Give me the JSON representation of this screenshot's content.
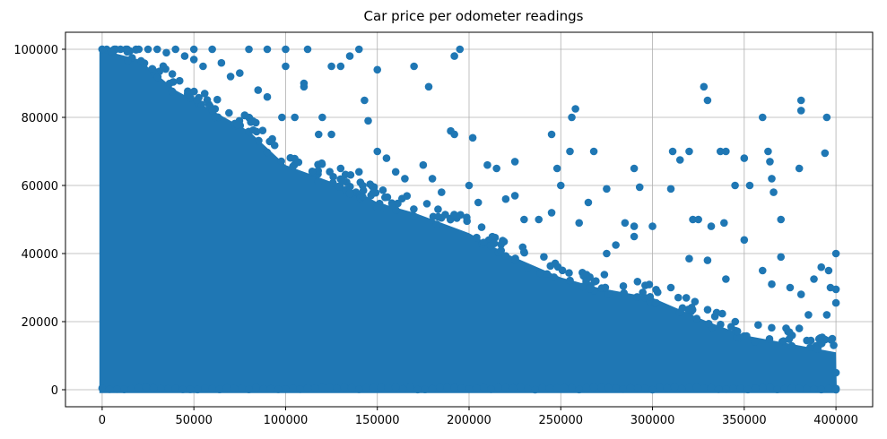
{
  "chart_data": {
    "type": "scatter",
    "title": "Car price per odometer readings",
    "xlabel": "",
    "ylabel": "",
    "xlim": [
      -20000,
      420000
    ],
    "ylim": [
      -5000,
      105000
    ],
    "xticks": [
      0,
      50000,
      100000,
      150000,
      200000,
      250000,
      300000,
      350000,
      400000
    ],
    "xtick_labels": [
      "0",
      "50000",
      "100000",
      "150000",
      "200000",
      "250000",
      "300000",
      "350000",
      "400000"
    ],
    "yticks": [
      0,
      20000,
      40000,
      60000,
      80000,
      100000
    ],
    "ytick_labels": [
      "0",
      "20000",
      "40000",
      "60000",
      "80000",
      "100000"
    ],
    "grid": true,
    "color": "#1f77b4",
    "series": [
      {
        "dense_band_upper_envelope": [
          [
            0,
            100000
          ],
          [
            20000,
            97000
          ],
          [
            40000,
            88000
          ],
          [
            60000,
            82000
          ],
          [
            80000,
            76000
          ],
          [
            100000,
            66000
          ],
          [
            120000,
            62000
          ],
          [
            140000,
            58000
          ],
          [
            150000,
            55000
          ],
          [
            170000,
            52000
          ],
          [
            200000,
            46000
          ],
          [
            220000,
            40000
          ],
          [
            250000,
            33000
          ],
          [
            270000,
            30000
          ],
          [
            300000,
            27000
          ],
          [
            330000,
            20000
          ],
          [
            350000,
            16000
          ],
          [
            380000,
            13000
          ],
          [
            400000,
            11000
          ]
        ],
        "outliers": [
          [
            0,
            100000
          ],
          [
            5000,
            99500
          ],
          [
            10000,
            100000
          ],
          [
            20000,
            100000
          ],
          [
            30000,
            100000
          ],
          [
            40000,
            100000
          ],
          [
            50000,
            100000
          ],
          [
            60000,
            100000
          ],
          [
            80000,
            100000
          ],
          [
            90000,
            100000
          ],
          [
            100000,
            100000
          ],
          [
            112000,
            100000
          ],
          [
            135000,
            98000
          ],
          [
            140000,
            100000
          ],
          [
            192000,
            98000
          ],
          [
            195000,
            100000
          ],
          [
            130000,
            95000
          ],
          [
            125000,
            95000
          ],
          [
            170000,
            95000
          ],
          [
            150000,
            94000
          ],
          [
            178000,
            89000
          ],
          [
            110000,
            90000
          ],
          [
            100000,
            95000
          ],
          [
            143000,
            85000
          ],
          [
            145000,
            79000
          ],
          [
            190000,
            76000
          ],
          [
            192000,
            75000
          ],
          [
            202000,
            74000
          ],
          [
            210000,
            66000
          ],
          [
            215000,
            65000
          ],
          [
            225000,
            67000
          ],
          [
            245000,
            75000
          ],
          [
            248000,
            65000
          ],
          [
            255000,
            70000
          ],
          [
            256000,
            80000
          ],
          [
            258000,
            82500
          ],
          [
            268000,
            70000
          ],
          [
            275000,
            59000
          ],
          [
            290000,
            65000
          ],
          [
            293000,
            59500
          ],
          [
            300000,
            48000
          ],
          [
            310000,
            59000
          ],
          [
            311000,
            70000
          ],
          [
            315000,
            67500
          ],
          [
            320000,
            70000
          ],
          [
            322000,
            50000
          ],
          [
            325000,
            50000
          ],
          [
            328000,
            89000
          ],
          [
            330000,
            85000
          ],
          [
            332000,
            48000
          ],
          [
            337000,
            70000
          ],
          [
            340000,
            70000
          ],
          [
            339000,
            49000
          ],
          [
            345000,
            60000
          ],
          [
            350000,
            68000
          ],
          [
            353000,
            60000
          ],
          [
            360000,
            80000
          ],
          [
            363000,
            70000
          ],
          [
            364000,
            67000
          ],
          [
            365000,
            62000
          ],
          [
            366000,
            58000
          ],
          [
            370000,
            50000
          ],
          [
            370000,
            39000
          ],
          [
            380000,
            65000
          ],
          [
            381000,
            82000
          ],
          [
            381000,
            85000
          ],
          [
            395000,
            80000
          ],
          [
            394000,
            69500
          ],
          [
            400000,
            40000
          ],
          [
            392000,
            36000
          ],
          [
            388000,
            32500
          ],
          [
            396000,
            35000
          ],
          [
            360000,
            35000
          ],
          [
            365000,
            31000
          ],
          [
            375000,
            30000
          ],
          [
            381000,
            28000
          ],
          [
            385000,
            22000
          ],
          [
            395000,
            22000
          ],
          [
            397000,
            30000
          ],
          [
            400000,
            29500
          ],
          [
            400000,
            25500
          ],
          [
            398000,
            15000
          ],
          [
            400000,
            5000
          ],
          [
            400000,
            0
          ],
          [
            380000,
            18000
          ],
          [
            350000,
            44000
          ],
          [
            340000,
            32500
          ],
          [
            320000,
            38500
          ],
          [
            330000,
            38000
          ],
          [
            310000,
            30000
          ],
          [
            290000,
            48000
          ],
          [
            285000,
            49000
          ],
          [
            290000,
            45000
          ],
          [
            280000,
            42500
          ],
          [
            275000,
            40000
          ],
          [
            265000,
            55000
          ],
          [
            260000,
            49000
          ],
          [
            250000,
            60000
          ],
          [
            245000,
            52000
          ],
          [
            238000,
            50000
          ],
          [
            230000,
            50000
          ],
          [
            225000,
            57000
          ],
          [
            220000,
            56000
          ],
          [
            205000,
            55000
          ],
          [
            200000,
            60000
          ],
          [
            185000,
            58000
          ],
          [
            180000,
            62000
          ],
          [
            175000,
            66000
          ],
          [
            165000,
            62000
          ],
          [
            160000,
            64000
          ],
          [
            155000,
            68000
          ],
          [
            150000,
            70000
          ],
          [
            140000,
            64000
          ],
          [
            130000,
            65000
          ],
          [
            120000,
            80000
          ],
          [
            125000,
            75000
          ],
          [
            118000,
            75000
          ],
          [
            110000,
            89000
          ],
          [
            105000,
            80000
          ],
          [
            98000,
            80000
          ],
          [
            90000,
            86000
          ],
          [
            85000,
            88000
          ],
          [
            75000,
            93000
          ],
          [
            70000,
            92000
          ],
          [
            65000,
            96000
          ],
          [
            55000,
            95000
          ],
          [
            50000,
            97000
          ],
          [
            45000,
            98000
          ],
          [
            35000,
            99000
          ],
          [
            25000,
            100000
          ]
        ]
      }
    ]
  }
}
